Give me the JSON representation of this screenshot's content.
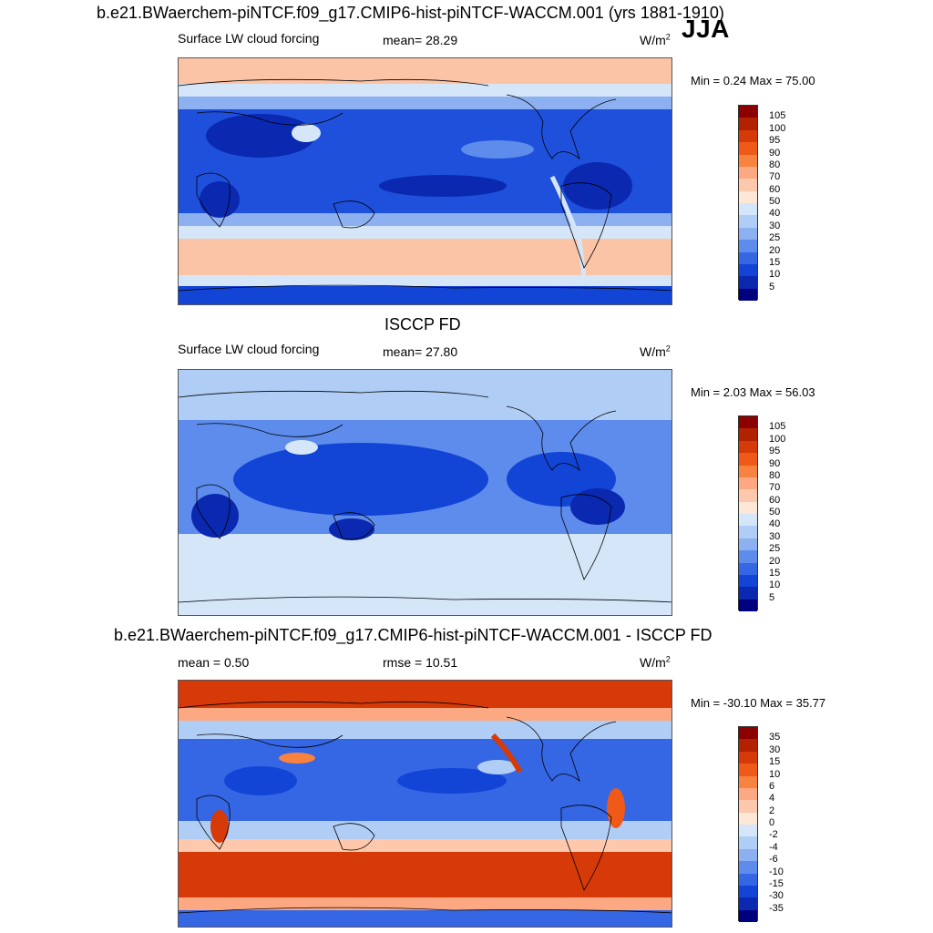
{
  "season": "JJA",
  "units_base": "W/m",
  "units_sup": "2",
  "panels": [
    {
      "title": "b.e21.BWaerchem-piNTCF.f09_g17.CMIP6-hist-piNTCF-WACCM.001 (yrs 1881-1910)",
      "left_label": "Surface LW cloud forcing",
      "mid_label": "mean=  28.29",
      "minmax": "Min =   0.24 Max =  75.00",
      "colorbar": {
        "labels": [
          "105",
          "100",
          "95",
          "90",
          "80",
          "70",
          "60",
          "50",
          "40",
          "30",
          "25",
          "20",
          "15",
          "10",
          "5"
        ],
        "colors": [
          "#8b0000",
          "#b22200",
          "#d63a08",
          "#f05a18",
          "#f8823f",
          "#fca882",
          "#fdc8ab",
          "#fde7d6",
          "#d4e6f8",
          "#b0cdf5",
          "#8cb0f0",
          "#5d8cec",
          "#3566e4",
          "#1244d6",
          "#0a28b0",
          "#00007f"
        ]
      }
    },
    {
      "title": "ISCCP FD",
      "left_label": "Surface LW cloud forcing",
      "mid_label": "mean=  27.80",
      "minmax": "Min =   2.03 Max =  56.03",
      "colorbar": {
        "labels": [
          "105",
          "100",
          "95",
          "90",
          "80",
          "70",
          "60",
          "50",
          "40",
          "30",
          "25",
          "20",
          "15",
          "10",
          "5"
        ],
        "colors": [
          "#8b0000",
          "#b22200",
          "#d63a08",
          "#f05a18",
          "#f8823f",
          "#fca882",
          "#fdc8ab",
          "#fde7d6",
          "#d4e6f8",
          "#b0cdf5",
          "#8cb0f0",
          "#5d8cec",
          "#3566e4",
          "#1244d6",
          "#0a28b0",
          "#00007f"
        ]
      }
    },
    {
      "title": "b.e21.BWaerchem-piNTCF.f09_g17.CMIP6-hist-piNTCF-WACCM.001 - ISCCP FD",
      "left_label": "mean =   0.50",
      "mid_label": "rmse =  10.51",
      "minmax": "Min = -30.10 Max =  35.77",
      "colorbar": {
        "labels": [
          "35",
          "30",
          "15",
          "10",
          "6",
          "4",
          "2",
          "0",
          "-2",
          "-4",
          "-6",
          "-10",
          "-15",
          "-30",
          "-35"
        ],
        "colors": [
          "#8b0000",
          "#b22200",
          "#d63a08",
          "#f05a18",
          "#f8823f",
          "#fca882",
          "#fdc8ab",
          "#fde7d6",
          "#d4e6f8",
          "#b0cdf5",
          "#8cb0f0",
          "#5d8cec",
          "#3566e4",
          "#1244d6",
          "#0a28b0",
          "#00007f"
        ]
      }
    }
  ]
}
